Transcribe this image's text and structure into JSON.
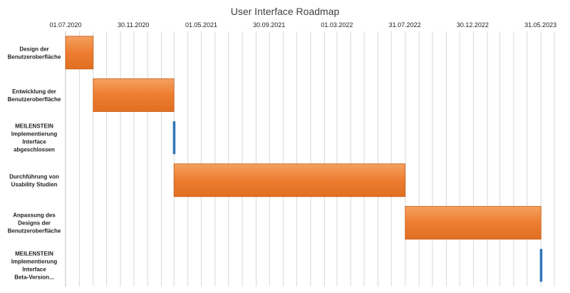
{
  "chart_data": {
    "type": "gantt",
    "title": "User Interface Roadmap",
    "x_axis": {
      "type": "date",
      "position": "top",
      "tick_labels": [
        "01.07.2020",
        "30.11.2020",
        "01.05.2021",
        "30.09.2021",
        "01.03.2022",
        "31.07.2022",
        "30.12.2022",
        "31.05.2023"
      ],
      "tick_dates": [
        "2020-07-01",
        "2020-11-30",
        "2021-05-01",
        "2021-09-30",
        "2022-03-01",
        "2022-07-31",
        "2022-12-30",
        "2023-05-31"
      ],
      "range": [
        "2020-07-01",
        "2023-07-01"
      ]
    },
    "grid": true,
    "legend": "none",
    "tasks": [
      {
        "label": "Design der Benutzeroberfläche",
        "lines": [
          "Design der",
          "Benutzeroberfläche"
        ],
        "start": "2020-07-01",
        "end": "2020-09-01",
        "kind": "task"
      },
      {
        "label": "Entwicklung der Benutzeroberfläche",
        "lines": [
          "Entwicklung der",
          "Benutzeroberfläche"
        ],
        "start": "2020-09-01",
        "end": "2021-03-01",
        "kind": "task"
      },
      {
        "label": "MEILENSTEIN Implementierung Interface abgeschlossen",
        "lines": [
          "MEILENSTEIN",
          "Implementierung",
          "Interface",
          "abgeschlossen"
        ],
        "start": "2021-03-01",
        "end": "2021-03-01",
        "kind": "milestone"
      },
      {
        "label": "Durchführung von Usability Studien",
        "lines": [
          "Durchführung von",
          "Usability Studien"
        ],
        "start": "2021-03-01",
        "end": "2022-08-01",
        "kind": "task"
      },
      {
        "label": "Anpassung des Designs der Benutzeroberfläche",
        "lines": [
          "Anpassung des",
          "Designs der",
          "Benutzeroberfläche"
        ],
        "start": "2022-08-01",
        "end": "2023-06-01",
        "kind": "task"
      },
      {
        "label": "MEILENSTEIN Implementierung Interface Beta-Version...",
        "lines": [
          "MEILENSTEIN",
          "Implementierung",
          "Interface",
          "Beta-Version..."
        ],
        "start": "2023-06-01",
        "end": "2023-06-01",
        "kind": "milestone"
      }
    ],
    "colors": {
      "task": "#ed7d31",
      "task_edge": "#c55a11",
      "milestone": "#2e75b6",
      "grid": "#d9d9d9",
      "axis": "#bfbfbf"
    }
  }
}
